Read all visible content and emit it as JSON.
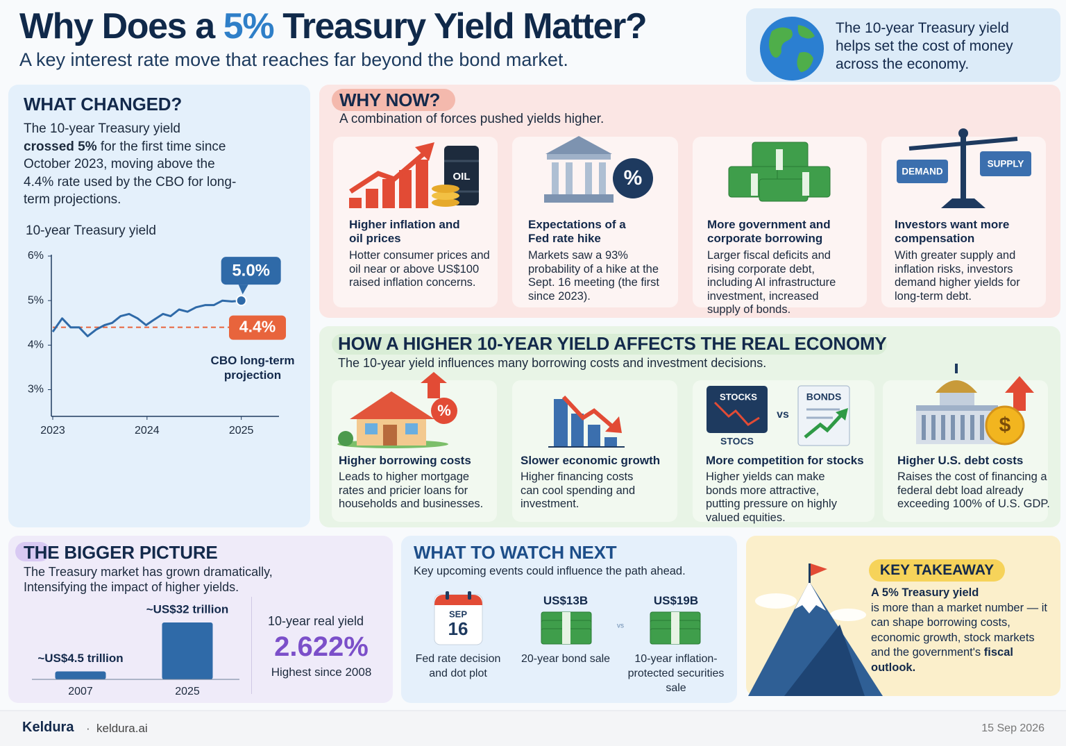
{
  "header": {
    "title": [
      "Why Does a ",
      "5%",
      " Treasury Yield Matter?"
    ],
    "subtitle": "A key interest rate move that reaches far beyond the bond market.",
    "callout": "The 10-year Treasury yield helps set the cost of money across the economy."
  },
  "what_changed": {
    "heading": "WHAT CHANGED?",
    "text": [
      "The 10-year Treasury yield ",
      "crossed 5%",
      " for the first time since October 2023, moving above the 4.4% rate used by the CBO for long-term projections."
    ]
  },
  "yield_chart": {
    "type": "line",
    "title": "10-year Treasury yield",
    "x": [
      2023.0,
      2023.1,
      2023.19,
      2023.28,
      2023.37,
      2023.46,
      2023.55,
      2023.63,
      2023.72,
      2023.81,
      2023.9,
      2023.99,
      2024.06,
      2024.17,
      2024.25,
      2024.34,
      2024.43,
      2024.52,
      2024.62,
      2024.71,
      2024.8,
      2024.9,
      2025.0
    ],
    "values": [
      4.3,
      4.6,
      4.4,
      4.4,
      4.2,
      4.35,
      4.45,
      4.5,
      4.65,
      4.7,
      4.6,
      4.45,
      4.55,
      4.7,
      4.65,
      4.8,
      4.75,
      4.85,
      4.9,
      4.9,
      5.0,
      4.98,
      5.0
    ],
    "color": "#2f6aa8",
    "xlim": [
      2023,
      2025.4
    ],
    "ylim": [
      2.4,
      6
    ],
    "xticks": [
      2023,
      2024,
      2025
    ],
    "yticks": [
      {
        "value": 3,
        "label": "3%"
      },
      {
        "value": 4,
        "label": "4%"
      },
      {
        "value": 5,
        "label": "5%"
      },
      {
        "value": 6,
        "label": "6%"
      }
    ],
    "end_label": "5.0%",
    "reference": {
      "value": 4.4,
      "label": "4.4%",
      "text": "CBO long-term projection",
      "color": "#e8643c"
    }
  },
  "why_now": {
    "heading": "WHY NOW?",
    "subtitle": "A combination of forces pushed yields higher.",
    "cards": [
      {
        "title": "Higher inflation and oil prices",
        "text": "Hotter consumer prices and oil near or above US$100 raised inflation concerns.",
        "icon_label": "OIL"
      },
      {
        "title": "Expectations of a Fed rate hike",
        "text": "Markets saw a 93% probability of a hike at the Sept. 16 meeting (the first since 2023).",
        "icon_label": "%"
      },
      {
        "title": "More government and corporate borrowing",
        "text": "Larger fiscal deficits and rising corporate debt, including AI infrastructure investment, increased supply of bonds."
      },
      {
        "title": "Investors want more compensation",
        "text": "With greater supply and inflation risks, investors demand higher yields for long-term debt.",
        "icon_labels": [
          "DEMAND",
          "SUPPLY"
        ]
      }
    ]
  },
  "effects": {
    "heading": "HOW A HIGHER 10-YEAR YIELD AFFECTS THE REAL ECONOMY",
    "subtitle": "The 10-year yield influences many borrowing costs and investment decisions.",
    "cards": [
      {
        "title": "Higher borrowing costs",
        "text": "Leads to higher mortgage rates and pricier loans for households and businesses.",
        "icon_label": "%"
      },
      {
        "title": "Slower economic growth",
        "text": "Higher financing costs can cool spending and investment."
      },
      {
        "title": "More competition for stocks",
        "text": "Higher yields can make bonds more attractive, putting pressure on highly valued equities.",
        "icon_labels": [
          "STOCKS",
          "vs",
          "BONDS",
          "STOCS"
        ]
      },
      {
        "title": "Higher U.S. debt costs",
        "text": "Raises the cost of financing a federal debt load already exceeding 100% of U.S. GDP.",
        "icon_label": "$"
      }
    ]
  },
  "bigger_picture": {
    "heading": "THE BIGGER PICTURE",
    "text": "The Treasury market has grown dramatically, Intensifying the impact of higher yields.",
    "market_chart": {
      "type": "bar",
      "categories": [
        "2007",
        "2025"
      ],
      "values": [
        4.5,
        32
      ],
      "value_labels": [
        "~US$4.5 trillion",
        "~US$32 trillion"
      ],
      "color": "#2f6aa8",
      "ylim": [
        0,
        32
      ]
    },
    "real_yield": {
      "label": "10-year real yield",
      "value": "2.622%",
      "note": "Highest since 2008"
    }
  },
  "watch_next": {
    "heading": "WHAT TO WATCH NEXT",
    "subtitle": "Key upcoming events could influence the path ahead.",
    "separator": "vs",
    "events": [
      {
        "icon": [
          "SEP",
          "16"
        ],
        "label": "Fed rate decision and dot plot"
      },
      {
        "icon": [
          "US$13B"
        ],
        "label": "20-year bond sale"
      },
      {
        "icon": [
          "US$19B"
        ],
        "label": "10-year inflation-protected securities sale"
      }
    ]
  },
  "takeaway": {
    "heading": "KEY TAKEAWAY",
    "text": [
      "A 5% Treasury yield",
      " is more than a market number — it can shape borrowing costs, economic growth, stock markets and the government's ",
      "fiscal outlook."
    ]
  },
  "footer": {
    "brand": "Keldura",
    "separator": "·",
    "site": "keldura.ai",
    "date": "15 Sep 2026"
  }
}
